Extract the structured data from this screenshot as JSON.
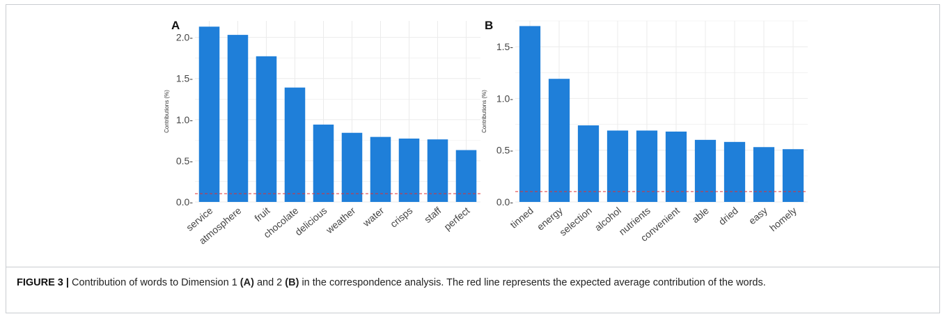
{
  "chart_data": [
    {
      "type": "bar",
      "panel_label": "A",
      "ylabel": "Contributions (%)",
      "categories": [
        "service",
        "atmosphere",
        "fruit",
        "chocolate",
        "delicious",
        "weather",
        "water",
        "crisps",
        "staff",
        "perfect"
      ],
      "values": [
        2.13,
        2.03,
        1.77,
        1.39,
        0.94,
        0.84,
        0.79,
        0.77,
        0.76,
        0.63
      ],
      "ylim": [
        0,
        2.2
      ],
      "yticks": [
        0.0,
        0.5,
        1.0,
        1.5,
        2.0
      ],
      "ytick_labels": [
        "0.0-",
        "0.5-",
        "1.0-",
        "1.5-",
        "2.0-"
      ],
      "reference_line": 0.1,
      "bar_color": "#1f7fd9",
      "reference_color": "#e03030",
      "grid": true
    },
    {
      "type": "bar",
      "panel_label": "B",
      "ylabel": "Contributions (%)",
      "categories": [
        "tinned",
        "energy",
        "selection",
        "alcohol",
        "nutrients",
        "convenient",
        "able",
        "dried",
        "easy",
        "homely"
      ],
      "values": [
        1.7,
        1.19,
        0.74,
        0.69,
        0.69,
        0.68,
        0.6,
        0.58,
        0.53,
        0.51
      ],
      "ylim": [
        0,
        1.75
      ],
      "yticks": [
        0.0,
        0.5,
        1.0,
        1.5
      ],
      "ytick_labels": [
        "0.0-",
        "0.5-",
        "1.0-",
        "1.5-"
      ],
      "reference_line": 0.1,
      "bar_color": "#1f7fd9",
      "reference_color": "#e03030",
      "grid": true
    }
  ],
  "caption": {
    "figure_label": "FIGURE 3 |",
    "text_1": " Contribution of words to Dimension 1 ",
    "ref_a": "(A)",
    "text_2": " and 2 ",
    "ref_b": "(B)",
    "text_3": " in the correspondence analysis. The red line represents the expected average contribution of the words."
  }
}
